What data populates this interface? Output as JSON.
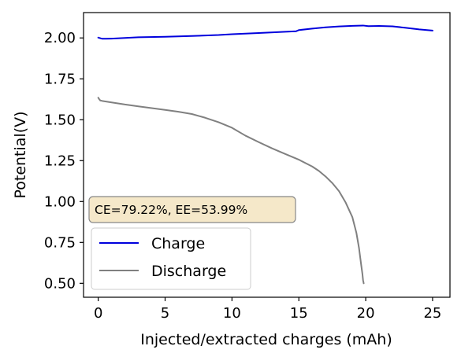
{
  "chart_data": {
    "type": "line",
    "title": "",
    "xlabel": "Injected/extracted charges (mAh)",
    "ylabel": "Potential(V)",
    "xlim": [
      -1.1,
      26.3
    ],
    "ylim": [
      0.415,
      2.155
    ],
    "xticks": [
      0,
      5,
      10,
      15,
      20,
      25
    ],
    "xtick_labels": [
      "0",
      "5",
      "10",
      "15",
      "20",
      "25"
    ],
    "yticks": [
      0.5,
      0.75,
      1.0,
      1.25,
      1.5,
      1.75,
      2.0
    ],
    "ytick_labels": [
      "0.50",
      "0.75",
      "1.00",
      "1.25",
      "1.50",
      "1.75",
      "2.00"
    ],
    "grid": false,
    "legend": {
      "placement": "lower-left"
    },
    "annotation": {
      "text": "CE=79.22%, EE=53.99%",
      "placement": "left-center",
      "face": "#F5E8C9",
      "edge": "#888888"
    },
    "series": [
      {
        "name": "Charge",
        "color": "#0000dd",
        "x": [
          0,
          0.3,
          0.6,
          1,
          2,
          3,
          5,
          7,
          9,
          10,
          12,
          14,
          14.8,
          15,
          16,
          17,
          18,
          19,
          19.8,
          20.2,
          21,
          22,
          23,
          24,
          25
        ],
        "y": [
          2.002,
          1.995,
          1.995,
          1.996,
          2.0,
          2.004,
          2.007,
          2.012,
          2.018,
          2.023,
          2.03,
          2.038,
          2.041,
          2.048,
          2.057,
          2.065,
          2.07,
          2.074,
          2.076,
          2.072,
          2.073,
          2.071,
          2.062,
          2.052,
          2.045
        ]
      },
      {
        "name": "Discharge",
        "color": "#808080",
        "x": [
          0,
          0.05,
          0.15,
          0.3,
          1,
          2,
          3,
          4,
          5,
          6,
          7,
          8,
          9,
          10,
          11,
          12,
          13,
          14,
          15,
          16,
          16.5,
          17,
          17.5,
          18,
          18.5,
          19,
          19.3,
          19.5,
          19.65,
          19.75,
          19.8,
          19.85
        ],
        "y": [
          1.635,
          1.628,
          1.618,
          1.615,
          1.606,
          1.593,
          1.582,
          1.571,
          1.56,
          1.549,
          1.535,
          1.512,
          1.485,
          1.451,
          1.403,
          1.363,
          1.325,
          1.29,
          1.256,
          1.214,
          1.187,
          1.153,
          1.113,
          1.064,
          0.994,
          0.905,
          0.81,
          0.715,
          0.62,
          0.56,
          0.52,
          0.5
        ]
      }
    ]
  }
}
